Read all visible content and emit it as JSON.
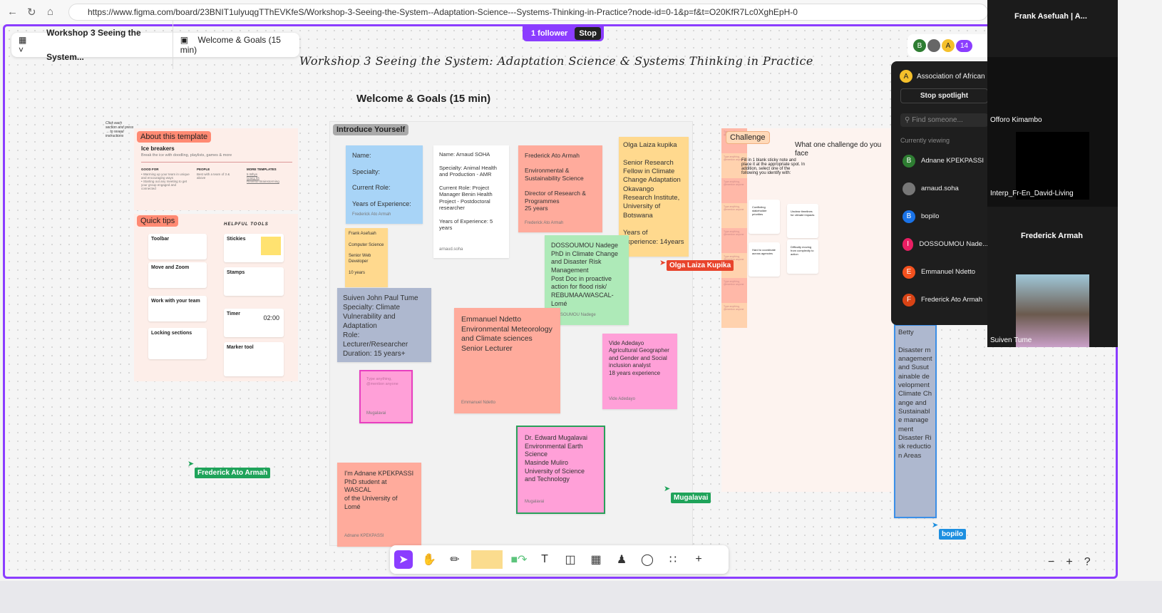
{
  "browser": {
    "url": "https://www.figma.com/board/23BNIT1ulyuqgTThEVKfeS/Workshop-3-Seeing-the-System--Adaptation-Science---Systems-Thinking-in-Practice?node-id=0-1&p=f&t=O20KfR7Lc0XghEpH-0"
  },
  "file": {
    "name": "Workshop 3 Seeing the System...",
    "section": "Welcome & Goals (15 min)"
  },
  "follow": {
    "label": "1 follower",
    "stop": "Stop"
  },
  "board": {
    "title": "Workshop 3 Seeing the System: Adaptation Science & Systems Thinking in Practice",
    "subtitle": "Welcome & Goals (15 min)"
  },
  "about": {
    "tag": "About this template",
    "hint": "Click each section and press → to reveal instructions",
    "heading": "Ice breakers",
    "desc": "Break the ice with doodling, playlists, games & more",
    "good_for": "GOOD FOR",
    "good_items": "• Warming up your team in unique and encouraging ways\n• Starting out any meeting to get your group engaged and connected",
    "people": "PEOPLE",
    "people_text": "Best with a team of 3 & above",
    "more": "MORE TEMPLATES",
    "more_items": "5 Whys\nCrazy 8s\nReverse Brainstorming"
  },
  "tips": {
    "tag": "Quick tips",
    "helpful": "HELPFUL TOOLS",
    "cards": [
      "Toolbar",
      "Move and Zoom",
      "Work with your team",
      "Locking sections"
    ],
    "tools": [
      "Stickies",
      "Stamps",
      "Timer",
      "Marker tool"
    ],
    "timer": "02:00"
  },
  "intro": {
    "tag": "Introduce Yourself"
  },
  "stickies": [
    {
      "text": "Name:\n\nSpecialty:\n\nCurrent Role:\n\nYears of Experience:",
      "author": "Frederick Ato Armah",
      "color": "#a8d4f7"
    },
    {
      "text": "Name: Arnaud SOHA\n\nSpecialty:  Animal Health and Production -  AMR\n\nCurrent Role:  Project Manager  Benin Health Project - Postdoctoral researcher\n\nYears of Experience: 5 years",
      "author": "arnaud.soha",
      "color": "#ffffff"
    },
    {
      "text": "Frederick Ato Armah\n\nEnvironmental & Sustainability Science\n\nDirector of Research & Programmes\n25 years",
      "author": "Frederick Ato Armah",
      "color": "#ffab9c"
    },
    {
      "text": "Olga Laiza kupika\n\nSenior Research Fellow in Climate Change Adaptation Okavango Research Institute, University of Botswana\n\nYears of experience: 14years",
      "author": "",
      "color": "#ffd98e"
    },
    {
      "text": "Frank Asefuah\n\nComputer Science\n\nSenior Web Developer\n\n10 years",
      "author": "",
      "color": "#ffd98e"
    },
    {
      "text": "DOSSOUMOU Nadege\nPhD in Climate Change and Disaster Risk Management\nPost Doc in proactive action for flood risk/ REBUMAA/WASCAL-Lomé",
      "author": "DOSSOUMOU Nadege",
      "color": "#aeeab8"
    },
    {
      "text": "Suiven John Paul Tume\nSpecialty: Climate Vulnerability and Adaptation\nRole: Lecturer/Researcher\nDuration: 15 years+",
      "author": "",
      "color": "#aeb8cf"
    },
    {
      "text": "Type anything, @mention anyone",
      "author": "Mugalavai",
      "color": "#ffa0d8"
    },
    {
      "text": "Emmanuel Ndetto\nEnvironmental Meteorology and Climate sciences\nSenior Lecturer",
      "author": "Emmanuel Ndetto",
      "color": "#ffab9c"
    },
    {
      "text": "Vide Adedayo\nAgricultural Geographer and Gender and Social inclusion analyst\n18 years experience",
      "author": "Vide Adedayo",
      "color": "#ffa0d8"
    },
    {
      "text": "Dr. Edward Mugalavai\nEnvironmental Earth Science\nMasinde Muliro University of Science and Technology",
      "author": "Mugalavai",
      "color": "#ffa0d8"
    },
    {
      "text": "I'm Adnane KPEKPASSI\nPhD student at WASCAL\nof the University of Lomé",
      "author": "Adnane KPEKPASSI",
      "color": "#ffab9c"
    },
    {
      "text": "Betty\n\nDisaster management and Susutainable development\nClimate Change and Sustainable management\nDisaster Risk reduction Areas",
      "author": "",
      "color": "#aeb8cf"
    }
  ],
  "challenge": {
    "tag": "Challenge",
    "question": "What one challenge do you face",
    "instructions": "Fill in 1 blank sticky note and place it at the appropriate spot. In addition, select one of the following you identify with:",
    "cards": [
      "Conflicting stakeholder priorities",
      "Unclear timelines for climate impacts",
      "Hard to coordinate across agencies",
      "Difficulty moving from complexity to action"
    ],
    "placeholder": "Type anything, @mention anyone"
  },
  "cursors": [
    {
      "name": "Olga Laiza Kupika",
      "color": "#e8442c"
    },
    {
      "name": "Frederick Ato Armah",
      "color": "#1fa35a"
    },
    {
      "name": "Mugalavai",
      "color": "#1fa35a"
    },
    {
      "name": "bopilo",
      "color": "#1d8fe0"
    }
  ],
  "collab": {
    "avatars": [
      "B",
      "A"
    ],
    "count": "14"
  },
  "panel": {
    "org": "Association of African",
    "stop": "Stop spotlight",
    "search_placeholder": "Find someone...",
    "viewing": "Currently viewing",
    "people": [
      {
        "initial": "B",
        "name": "Adnane KPEKPASSI",
        "color": "#2e7d32"
      },
      {
        "initial": "",
        "name": "arnaud.soha",
        "color": "#777"
      },
      {
        "initial": "B",
        "name": "bopilo",
        "color": "#1a73e8"
      },
      {
        "initial": "I",
        "name": "DOSSOUMOU Nade...",
        "color": "#e91e63"
      },
      {
        "initial": "E",
        "name": "Emmanuel Ndetto",
        "color": "#f4511e"
      },
      {
        "initial": "F",
        "name": "Frederick Ato Armah",
        "color": "#d84315"
      }
    ]
  },
  "video": {
    "tiles": [
      "Frank Asefuah | A...",
      "Offoro Kimambo",
      "Interp_Fr-En_David-Living",
      "Frederick Armah",
      "Suiven Tume"
    ]
  },
  "zoom": {
    "minus": "−",
    "plus": "+",
    "help": "?"
  }
}
